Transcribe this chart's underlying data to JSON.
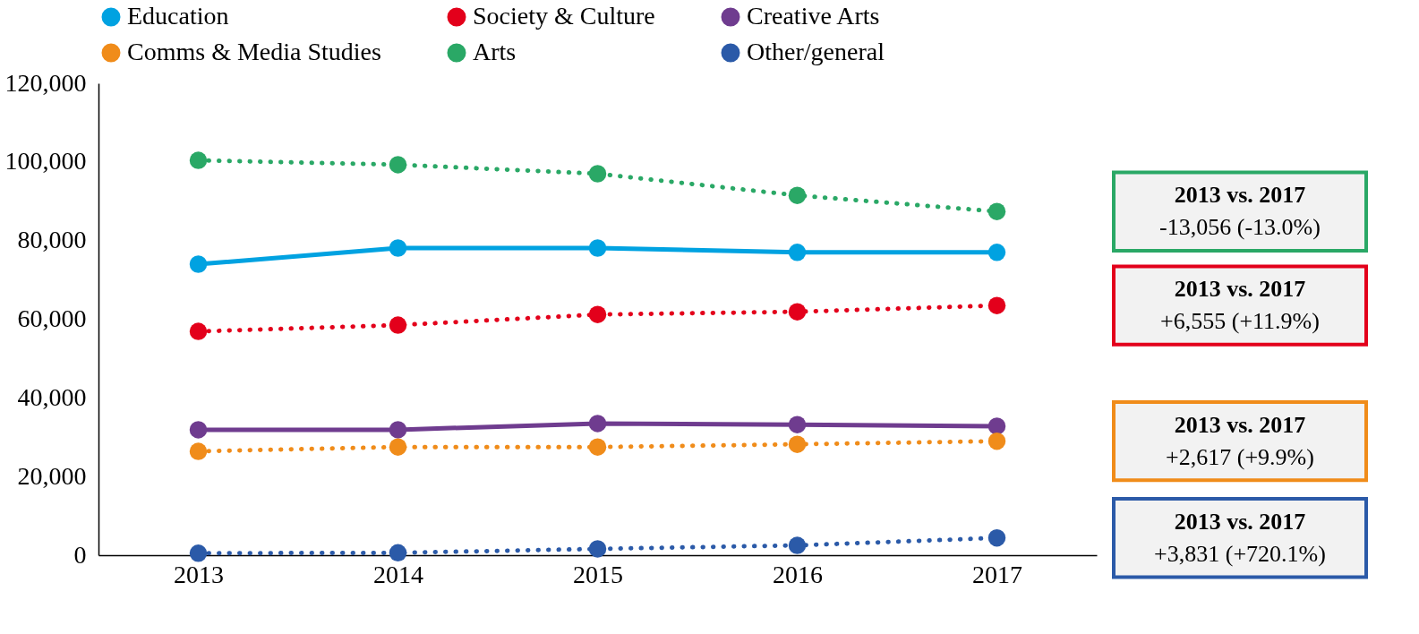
{
  "chart_data": {
    "type": "line",
    "categories": [
      "2013",
      "2014",
      "2015",
      "2016",
      "2017"
    ],
    "ylim": [
      0,
      120000
    ],
    "yticks": [
      {
        "value": 0,
        "label": "0"
      },
      {
        "value": 20000,
        "label": "20,000"
      },
      {
        "value": 40000,
        "label": "40,000"
      },
      {
        "value": 60000,
        "label": "60,000"
      },
      {
        "value": 80000,
        "label": "80,000"
      },
      {
        "value": 100000,
        "label": "100,000"
      },
      {
        "value": 120000,
        "label": "120,000"
      }
    ],
    "grid": false,
    "legend": "top",
    "marker": "circle",
    "series": [
      {
        "name": "Education",
        "color": "#00a2e1",
        "line_style": "solid",
        "values": [
          74000,
          78100,
          78100,
          77000,
          77000
        ]
      },
      {
        "name": "Society & Culture",
        "color": "#e3001b",
        "line_style": "dotted",
        "values": [
          56900,
          58500,
          61200,
          61900,
          63500
        ]
      },
      {
        "name": "Creative Arts",
        "color": "#6f3c8f",
        "line_style": "solid",
        "values": [
          31900,
          31900,
          33500,
          33200,
          32800
        ]
      },
      {
        "name": "Comms & Media Studies",
        "color": "#f08c1a",
        "line_style": "dotted",
        "values": [
          26400,
          27500,
          27500,
          28200,
          29000
        ]
      },
      {
        "name": "Arts",
        "color": "#2aa866",
        "line_style": "dotted",
        "values": [
          100400,
          99300,
          97000,
          91500,
          87400
        ]
      },
      {
        "name": "Other/general",
        "color": "#2b5aa8",
        "line_style": "dotted",
        "values": [
          500,
          600,
          1600,
          2500,
          4400
        ]
      }
    ],
    "annotations": [
      "2013 vs. 2017\n-13,056 (-13.0%)",
      "2013 vs. 2017\n+6,555 (+11.9%)",
      "2013 vs. 2017\n+2,617 (+9.9%)",
      "2013 vs. 2017\n+3,831 (+720.1%)"
    ]
  }
}
